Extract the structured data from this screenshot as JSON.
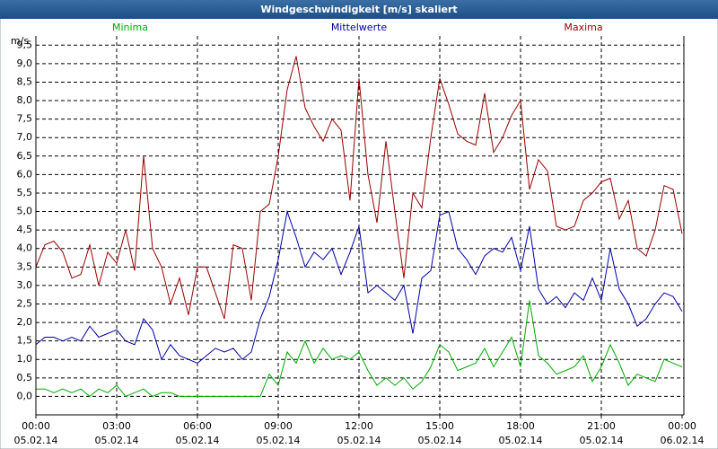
{
  "chart_data": {
    "type": "line",
    "title": "Windgeschwindigkeit [m/s] skaliert",
    "y_unit": "m/s",
    "x": [
      0,
      20,
      40,
      60,
      80,
      100,
      120,
      140,
      160,
      180,
      200,
      220,
      240,
      260,
      280,
      300,
      320,
      340,
      360,
      380,
      400,
      420,
      440,
      460,
      480,
      500,
      520,
      540,
      560,
      580,
      600,
      620,
      640,
      660,
      680,
      700,
      720,
      740,
      760,
      780,
      800,
      820,
      840,
      860,
      880,
      900,
      920,
      940,
      960,
      980,
      1000,
      1020,
      1040,
      1060,
      1080,
      1100,
      1120,
      1140,
      1160,
      1180,
      1200,
      1220,
      1240,
      1260,
      1280,
      1300,
      1320,
      1340,
      1360,
      1380,
      1400,
      1420,
      1440
    ],
    "series": [
      {
        "name": "Minima",
        "color": "#00aa00",
        "values": [
          0.2,
          0.2,
          0.1,
          0.2,
          0.1,
          0.2,
          0.0,
          0.2,
          0.1,
          0.3,
          0.0,
          0.1,
          0.2,
          0.0,
          0.1,
          0.1,
          0.0,
          0.0,
          0.0,
          0.0,
          0.0,
          0.0,
          0.0,
          0.0,
          0.0,
          0.0,
          0.6,
          0.3,
          1.2,
          0.9,
          1.5,
          0.9,
          1.3,
          1.0,
          1.1,
          1.0,
          1.2,
          0.7,
          0.3,
          0.5,
          0.3,
          0.5,
          0.2,
          0.4,
          0.8,
          1.4,
          1.2,
          0.7,
          0.8,
          0.9,
          1.3,
          0.8,
          1.2,
          1.6,
          0.8,
          2.6,
          1.1,
          0.9,
          0.6,
          0.7,
          0.8,
          1.1,
          0.4,
          0.8,
          1.4,
          0.9,
          0.3,
          0.6,
          0.5,
          0.4,
          1.0,
          0.9,
          0.8
        ]
      },
      {
        "name": "Mittelwerte",
        "color": "#0000aa",
        "values": [
          1.4,
          1.6,
          1.6,
          1.5,
          1.6,
          1.5,
          1.9,
          1.6,
          1.7,
          1.8,
          1.5,
          1.4,
          2.1,
          1.8,
          1.0,
          1.4,
          1.1,
          1.0,
          0.9,
          1.1,
          1.3,
          1.2,
          1.3,
          1.0,
          1.2,
          2.1,
          2.7,
          3.7,
          5.0,
          4.3,
          3.5,
          3.9,
          3.7,
          4.0,
          3.3,
          3.9,
          4.6,
          2.8,
          3.0,
          2.8,
          2.6,
          3.0,
          1.7,
          3.2,
          3.4,
          4.9,
          5.0,
          4.0,
          3.7,
          3.3,
          3.8,
          4.0,
          3.9,
          4.3,
          3.4,
          4.6,
          2.9,
          2.5,
          2.7,
          2.4,
          2.8,
          2.6,
          3.2,
          2.6,
          4.0,
          2.9,
          2.5,
          1.9,
          2.1,
          2.5,
          2.8,
          2.7,
          2.3
        ]
      },
      {
        "name": "Maxima",
        "color": "#990000",
        "values": [
          3.5,
          4.1,
          4.2,
          3.9,
          3.2,
          3.3,
          4.1,
          3.0,
          3.9,
          3.6,
          4.5,
          3.4,
          6.5,
          4.0,
          3.5,
          2.5,
          3.2,
          2.2,
          3.5,
          3.5,
          2.8,
          2.1,
          4.1,
          4.0,
          2.6,
          5.0,
          5.2,
          6.5,
          8.3,
          9.2,
          7.8,
          7.3,
          6.9,
          7.5,
          7.2,
          5.3,
          8.6,
          6.0,
          4.7,
          6.9,
          5.0,
          3.2,
          5.5,
          5.1,
          7.0,
          8.6,
          7.9,
          7.1,
          6.9,
          6.8,
          8.2,
          6.6,
          7.0,
          7.6,
          8.0,
          5.6,
          6.4,
          6.1,
          4.6,
          4.5,
          4.6,
          5.3,
          5.5,
          5.8,
          5.9,
          4.8,
          5.3,
          4.0,
          3.8,
          4.5,
          5.7,
          5.6,
          4.4
        ]
      }
    ],
    "xlim": [
      0,
      1440
    ],
    "xticks": [
      {
        "value": 0,
        "label": [
          "00:00",
          "05.02.14"
        ]
      },
      {
        "value": 180,
        "label": [
          "03:00",
          "05.02.14"
        ]
      },
      {
        "value": 360,
        "label": [
          "06:00",
          "05.02.14"
        ]
      },
      {
        "value": 540,
        "label": [
          "09:00",
          "05.02.14"
        ]
      },
      {
        "value": 720,
        "label": [
          "12:00",
          "05.02.14"
        ]
      },
      {
        "value": 900,
        "label": [
          "15:00",
          "05.02.14"
        ]
      },
      {
        "value": 1080,
        "label": [
          "18:00",
          "05.02.14"
        ]
      },
      {
        "value": 1260,
        "label": [
          "21:00",
          "05.02.14"
        ]
      },
      {
        "value": 1440,
        "label": [
          "00:00",
          "06.02.14"
        ]
      }
    ],
    "ylim": [
      -0.5,
      9.75
    ],
    "yticks": [
      {
        "value": 0,
        "label": "0,0"
      },
      {
        "value": 0.5,
        "label": "0,5"
      },
      {
        "value": 1,
        "label": "1,0"
      },
      {
        "value": 1.5,
        "label": "1,5"
      },
      {
        "value": 2,
        "label": "2,0"
      },
      {
        "value": 2.5,
        "label": "2,5"
      },
      {
        "value": 3,
        "label": "3,0"
      },
      {
        "value": 3.5,
        "label": "3,5"
      },
      {
        "value": 4,
        "label": "4,0"
      },
      {
        "value": 4.5,
        "label": "4,5"
      },
      {
        "value": 5,
        "label": "5,0"
      },
      {
        "value": 5.5,
        "label": "5,5"
      },
      {
        "value": 6,
        "label": "6,0"
      },
      {
        "value": 6.5,
        "label": "6,5"
      },
      {
        "value": 7,
        "label": "7,0"
      },
      {
        "value": 7.5,
        "label": "7,5"
      },
      {
        "value": 8,
        "label": "8,0"
      },
      {
        "value": 8.5,
        "label": "8,5"
      },
      {
        "value": 9,
        "label": "9,0"
      },
      {
        "value": 9.5,
        "label": "9,5"
      }
    ],
    "grid": true
  }
}
